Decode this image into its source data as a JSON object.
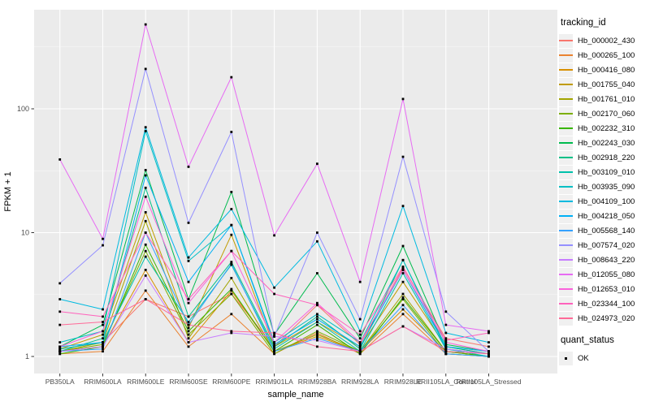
{
  "chart_data": {
    "type": "line",
    "scale_y": "log10",
    "title": "",
    "xlabel": "sample_name",
    "ylabel": "FPKM + 1",
    "y_ticks": [
      1,
      10,
      100
    ],
    "y_minor_breaks": [
      3.162,
      31.62,
      316.2
    ],
    "ylim": [
      0.93,
      640
    ],
    "grid": true,
    "legend_position": "right",
    "legend_title": "tracking_id",
    "point_marker": "black-square",
    "x_categories": [
      "PB350LA",
      "RRIM600LA",
      "RRIM600LE",
      "RRIM600SE",
      "RRIM600PE",
      "RRIM901LA",
      "RRIM928BA",
      "RRIM928LA",
      "RRIM928LE",
      "RRII105LA_Control",
      "RRII105LA_Stressed"
    ],
    "series": [
      {
        "name": "Hb_000002_430",
        "color": "#F8766D",
        "values": [
          1.15,
          1.3,
          2.9,
          2.1,
          3.2,
          1.2,
          2.6,
          1.25,
          5.2,
          1.4,
          1.2
        ]
      },
      {
        "name": "Hb_000265_100",
        "color": "#EA8331",
        "values": [
          1.05,
          1.1,
          3.4,
          1.2,
          2.2,
          1.05,
          1.55,
          1.05,
          2.2,
          1.05,
          1.0
        ]
      },
      {
        "name": "Hb_000416_080",
        "color": "#D89000",
        "values": [
          1.1,
          1.2,
          5.0,
          1.3,
          3.4,
          1.1,
          1.45,
          1.1,
          2.4,
          1.1,
          1.0
        ]
      },
      {
        "name": "Hb_001755_040",
        "color": "#C09B00",
        "values": [
          1.15,
          1.5,
          14.6,
          1.7,
          9.6,
          1.2,
          1.9,
          1.2,
          4.0,
          1.2,
          1.05
        ]
      },
      {
        "name": "Hb_001761_010",
        "color": "#A3A500",
        "values": [
          1.1,
          1.3,
          12.4,
          1.4,
          4.3,
          1.1,
          1.5,
          1.1,
          3.2,
          1.1,
          1.0
        ]
      },
      {
        "name": "Hb_002170_060",
        "color": "#7CAE00",
        "values": [
          1.1,
          1.25,
          7.1,
          1.5,
          3.2,
          1.05,
          1.6,
          1.1,
          2.9,
          1.05,
          1.0
        ]
      },
      {
        "name": "Hb_002232_310",
        "color": "#39B600",
        "values": [
          1.05,
          1.2,
          8.0,
          1.6,
          3.5,
          1.1,
          1.8,
          1.05,
          3.0,
          1.1,
          1.0
        ]
      },
      {
        "name": "Hb_002243_030",
        "color": "#00BB4E",
        "values": [
          1.2,
          1.8,
          32,
          2.9,
          21.3,
          1.5,
          4.7,
          1.4,
          7.8,
          1.25,
          1.1
        ]
      },
      {
        "name": "Hb_002918_220",
        "color": "#00C087",
        "values": [
          1.1,
          1.4,
          23,
          2.1,
          5.8,
          1.2,
          2.1,
          1.15,
          6.0,
          1.2,
          1.05
        ]
      },
      {
        "name": "Hb_003109_010",
        "color": "#00C1AB",
        "values": [
          1.15,
          1.3,
          6.4,
          1.9,
          5.5,
          1.15,
          1.9,
          1.1,
          4.7,
          1.15,
          1.0
        ]
      },
      {
        "name": "Hb_003935_090",
        "color": "#00BFC4",
        "values": [
          1.3,
          1.6,
          66,
          5.9,
          11.5,
          1.3,
          2.2,
          1.3,
          6.0,
          1.15,
          1.05
        ]
      },
      {
        "name": "Hb_004109_100",
        "color": "#00BAE0",
        "values": [
          2.9,
          2.4,
          71,
          6.3,
          15.5,
          3.6,
          8.5,
          1.6,
          16.4,
          1.55,
          1.3
        ]
      },
      {
        "name": "Hb_004218_050",
        "color": "#00B0F6",
        "values": [
          1.2,
          1.3,
          29,
          4.0,
          11.5,
          1.25,
          2.0,
          1.2,
          5.0,
          1.2,
          1.1
        ]
      },
      {
        "name": "Hb_005568_140",
        "color": "#35A2FF",
        "values": [
          1.1,
          1.15,
          10,
          1.8,
          5.6,
          1.1,
          1.4,
          1.1,
          2.6,
          1.05,
          1.0
        ]
      },
      {
        "name": "Hb_007574_020",
        "color": "#9590FF",
        "values": [
          3.9,
          7.9,
          210,
          12,
          65,
          1.45,
          10,
          2.0,
          41,
          2.3,
          1.1
        ]
      },
      {
        "name": "Hb_008643_220",
        "color": "#C77CFF",
        "values": [
          1.1,
          1.2,
          4.5,
          1.3,
          1.55,
          1.45,
          1.35,
          1.1,
          1.75,
          1.15,
          1.05
        ]
      },
      {
        "name": "Hb_012055_080",
        "color": "#E76BF3",
        "values": [
          39,
          8.9,
          480,
          34,
          180,
          9.5,
          36,
          4.0,
          120,
          1.8,
          1.6
        ]
      },
      {
        "name": "Hb_012653_010",
        "color": "#FA62DB",
        "values": [
          1.2,
          1.6,
          19.5,
          2.7,
          7.1,
          1.3,
          2.7,
          1.3,
          5.0,
          1.3,
          1.1
        ]
      },
      {
        "name": "Hb_023344_100",
        "color": "#FF62BC",
        "values": [
          2.3,
          2.1,
          10,
          2.9,
          7.1,
          3.2,
          2.6,
          1.5,
          5.3,
          1.35,
          1.55
        ]
      },
      {
        "name": "Hb_024973_020",
        "color": "#FF6A98",
        "values": [
          1.8,
          1.9,
          2.9,
          1.8,
          1.6,
          1.55,
          1.2,
          1.1,
          1.75,
          1.1,
          1.05
        ]
      }
    ],
    "quant_legend": {
      "title": "quant_status",
      "items": [
        {
          "label": "OK"
        }
      ]
    },
    "colors": {
      "panel_bg": "#EBEBEB",
      "grid_major": "#FFFFFF",
      "grid_minor": "#FFFFFF",
      "axis_text": "#4D4D4D",
      "axis_title": "#000000",
      "tick_mark": "#333333",
      "point": "#000000",
      "legend_key_bg": "#F0F0F0"
    }
  }
}
